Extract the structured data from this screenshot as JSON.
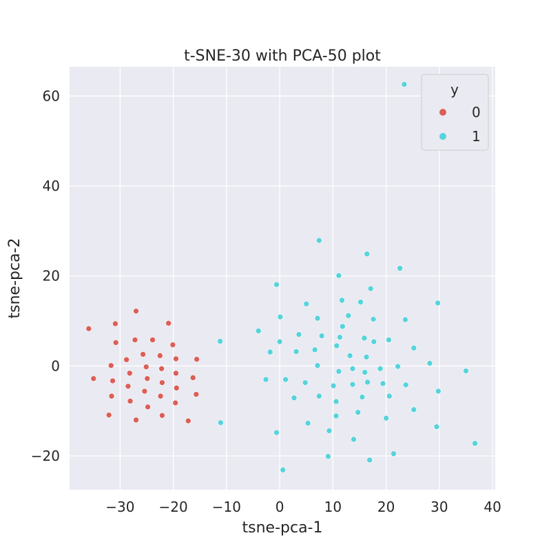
{
  "chart_data": {
    "type": "scatter",
    "title": "t-SNE-30 with PCA-50 plot",
    "xlabel": "tsne-pca-1",
    "ylabel": "tsne-pca-2",
    "xlim": [
      -39.5,
      40.5
    ],
    "ylim": [
      -27.5,
      66.5
    ],
    "xticks": [
      -30,
      -20,
      -10,
      0,
      10,
      20,
      30,
      40
    ],
    "yticks": [
      -20,
      0,
      20,
      40,
      60
    ],
    "xtick_labels": [
      "−30",
      "−20",
      "−10",
      "0",
      "10",
      "20",
      "30",
      "40"
    ],
    "ytick_labels": [
      "−20",
      "0",
      "20",
      "40",
      "60"
    ],
    "grid": true,
    "legend": {
      "title": "y",
      "placement": "top-right"
    },
    "series": [
      {
        "name": "0",
        "color": "#db5f57",
        "points": [
          [
            -35.9,
            8.3
          ],
          [
            -30.9,
            9.4
          ],
          [
            -27.0,
            12.2
          ],
          [
            -20.9,
            9.5
          ],
          [
            -27.2,
            5.8
          ],
          [
            -23.9,
            5.8
          ],
          [
            -20.1,
            4.7
          ],
          [
            -30.8,
            5.2
          ],
          [
            -25.7,
            2.6
          ],
          [
            -22.5,
            2.3
          ],
          [
            -19.5,
            1.6
          ],
          [
            -15.6,
            1.5
          ],
          [
            -28.8,
            1.4
          ],
          [
            -31.7,
            0.1
          ],
          [
            -25.1,
            -0.2
          ],
          [
            -22.2,
            -0.6
          ],
          [
            -28.2,
            -1.6
          ],
          [
            -19.5,
            -1.6
          ],
          [
            -35.0,
            -2.8
          ],
          [
            -31.4,
            -3.3
          ],
          [
            -24.9,
            -2.8
          ],
          [
            -22.1,
            -3.7
          ],
          [
            -16.3,
            -2.6
          ],
          [
            -28.5,
            -4.5
          ],
          [
            -25.4,
            -5.6
          ],
          [
            -19.4,
            -4.9
          ],
          [
            -15.7,
            -6.3
          ],
          [
            -31.6,
            -6.7
          ],
          [
            -22.4,
            -6.7
          ],
          [
            -28.1,
            -7.8
          ],
          [
            -19.6,
            -8.2
          ],
          [
            -24.8,
            -9.1
          ],
          [
            -32.1,
            -10.9
          ],
          [
            -27.0,
            -12.0
          ],
          [
            -22.1,
            -11.0
          ],
          [
            -17.2,
            -12.2
          ]
        ]
      },
      {
        "name": "1",
        "color": "#57d3db",
        "points": [
          [
            23.4,
            62.6
          ],
          [
            7.4,
            27.9
          ],
          [
            16.4,
            24.9
          ],
          [
            22.6,
            21.7
          ],
          [
            11.1,
            20.1
          ],
          [
            -0.6,
            18.1
          ],
          [
            17.1,
            17.2
          ],
          [
            11.7,
            14.6
          ],
          [
            5.0,
            13.8
          ],
          [
            15.2,
            14.2
          ],
          [
            29.7,
            14.0
          ],
          [
            0.1,
            10.9
          ],
          [
            7.1,
            10.6
          ],
          [
            12.9,
            11.2
          ],
          [
            17.6,
            10.4
          ],
          [
            23.6,
            10.3
          ],
          [
            11.8,
            8.8
          ],
          [
            -4.0,
            7.8
          ],
          [
            3.6,
            7.0
          ],
          [
            7.9,
            6.7
          ],
          [
            11.3,
            6.4
          ],
          [
            15.9,
            6.2
          ],
          [
            20.5,
            5.8
          ],
          [
            -11.2,
            5.5
          ],
          [
            -0.0,
            5.4
          ],
          [
            17.7,
            5.4
          ],
          [
            10.7,
            4.5
          ],
          [
            25.2,
            4.0
          ],
          [
            6.6,
            3.6
          ],
          [
            -1.8,
            3.1
          ],
          [
            3.1,
            3.2
          ],
          [
            13.2,
            2.3
          ],
          [
            16.3,
            2.0
          ],
          [
            28.2,
            0.6
          ],
          [
            7.1,
            0.1
          ],
          [
            22.2,
            -0.1
          ],
          [
            13.7,
            -0.6
          ],
          [
            18.9,
            -0.6
          ],
          [
            11.1,
            -1.2
          ],
          [
            16.0,
            -1.4
          ],
          [
            35.0,
            -1.1
          ],
          [
            -2.6,
            -3.0
          ],
          [
            1.1,
            -3.0
          ],
          [
            4.8,
            -3.7
          ],
          [
            16.5,
            -3.6
          ],
          [
            19.4,
            -3.9
          ],
          [
            10.1,
            -4.4
          ],
          [
            13.7,
            -4.1
          ],
          [
            23.7,
            -4.2
          ],
          [
            29.8,
            -5.6
          ],
          [
            2.7,
            -7.1
          ],
          [
            7.4,
            -6.7
          ],
          [
            15.5,
            -6.9
          ],
          [
            20.6,
            -6.7
          ],
          [
            10.6,
            -7.9
          ],
          [
            25.2,
            -9.7
          ],
          [
            14.7,
            -10.3
          ],
          [
            10.6,
            -11.1
          ],
          [
            20.0,
            -11.6
          ],
          [
            -11.1,
            -12.6
          ],
          [
            5.3,
            -12.7
          ],
          [
            29.5,
            -13.5
          ],
          [
            9.3,
            -14.4
          ],
          [
            -0.6,
            -14.8
          ],
          [
            13.9,
            -16.3
          ],
          [
            36.7,
            -17.2
          ],
          [
            21.4,
            -19.5
          ],
          [
            9.1,
            -20.1
          ],
          [
            16.9,
            -20.9
          ],
          [
            0.6,
            -23.1
          ]
        ]
      }
    ]
  }
}
